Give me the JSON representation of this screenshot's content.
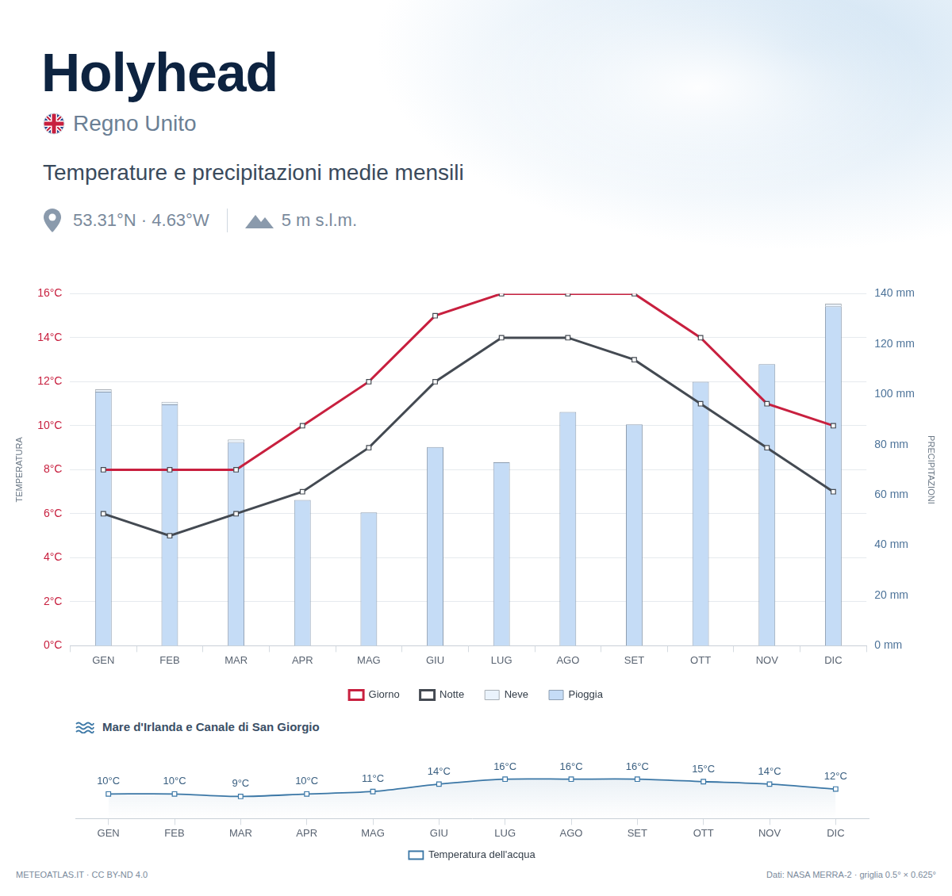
{
  "header": {
    "title": "Holyhead",
    "country": "Regno Unito",
    "subtitle": "Temperature e precipitazioni medie mensili",
    "coordinates": "53.31°N · 4.63°W",
    "elevation": "5 m s.l.m."
  },
  "chart_data": [
    {
      "type": "bar",
      "categories": [
        "GEN",
        "FEB",
        "MAR",
        "APR",
        "MAG",
        "GIU",
        "LUG",
        "AGO",
        "SET",
        "OTT",
        "NOV",
        "DIC"
      ],
      "y_label": "TEMPERATURA",
      "y2_label": "PRECIPITAZIONI",
      "ylim": [
        0,
        16
      ],
      "yticks": [
        {
          "value": 0,
          "label": "0°C"
        },
        {
          "value": 2,
          "label": "2°C"
        },
        {
          "value": 4,
          "label": "4°C"
        },
        {
          "value": 6,
          "label": "6°C"
        },
        {
          "value": 8,
          "label": "8°C"
        },
        {
          "value": 10,
          "label": "10°C"
        },
        {
          "value": 12,
          "label": "12°C"
        },
        {
          "value": 14,
          "label": "14°C"
        },
        {
          "value": 16,
          "label": "16°C"
        }
      ],
      "y2lim": [
        0,
        140
      ],
      "y2ticks": [
        {
          "value": 0,
          "label": "0 mm"
        },
        {
          "value": 20,
          "label": "20 mm"
        },
        {
          "value": 40,
          "label": "40 mm"
        },
        {
          "value": 60,
          "label": "60 mm"
        },
        {
          "value": 80,
          "label": "80 mm"
        },
        {
          "value": 100,
          "label": "100 mm"
        },
        {
          "value": 120,
          "label": "120 mm"
        },
        {
          "value": 140,
          "label": "140 mm"
        }
      ],
      "grid": true,
      "legend": "bottom",
      "stacked": true,
      "series": [
        {
          "name": "Giorno",
          "type": "line",
          "color": "#c8203f",
          "marker": "square",
          "values": [
            8,
            8,
            8,
            10,
            12,
            15,
            16,
            16,
            16,
            14,
            11,
            10
          ]
        },
        {
          "name": "Notte",
          "type": "line",
          "color": "#444a52",
          "marker": "square",
          "values": [
            6,
            5,
            6,
            7,
            9,
            12,
            14,
            14,
            13,
            11,
            9,
            7
          ]
        },
        {
          "name": "Neve",
          "type": "bar",
          "color": "#eaf3fc",
          "axis": "y2",
          "values": [
            1,
            1,
            1,
            0,
            0,
            0,
            0,
            0,
            0,
            0,
            0,
            1
          ]
        },
        {
          "name": "Pioggia",
          "type": "bar",
          "color": "#c5dcf6",
          "axis": "y2",
          "values": [
            101,
            96,
            81,
            58,
            53,
            79,
            73,
            93,
            88,
            105,
            112,
            135
          ]
        }
      ]
    },
    {
      "type": "line",
      "title": "Mare d'Irlanda e Canale di San Giorgio",
      "categories": [
        "GEN",
        "FEB",
        "MAR",
        "APR",
        "MAG",
        "GIU",
        "LUG",
        "AGO",
        "SET",
        "OTT",
        "NOV",
        "DIC"
      ],
      "ylim": [
        0,
        22
      ],
      "grid": false,
      "legend": "bottom",
      "tick_labels": "x",
      "data_labels": true,
      "series": [
        {
          "name": "Temperatura dell'acqua",
          "color": "#3b77a6",
          "marker": "square",
          "values": [
            10,
            10,
            9,
            10,
            11,
            14,
            16,
            16,
            16,
            15,
            14,
            12
          ],
          "value_labels": [
            "10°C",
            "10°C",
            "9°C",
            "10°C",
            "11°C",
            "14°C",
            "16°C",
            "16°C",
            "16°C",
            "15°C",
            "14°C",
            "12°C"
          ]
        }
      ]
    }
  ],
  "footer": {
    "credit": "METEOATLAS.IT · CC BY-ND 4.0",
    "source": "Dati: NASA MERRA-2 · griglia 0.5° × 0.625°"
  }
}
